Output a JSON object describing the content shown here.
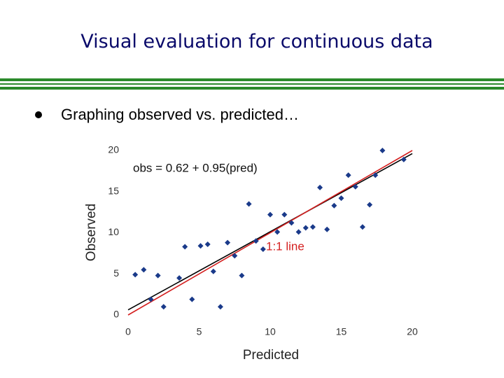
{
  "slide": {
    "title": "Visual evaluation for continuous data",
    "bullet": "Graphing observed vs. predicted…"
  },
  "chart_data": {
    "type": "scatter",
    "x_label": "Predicted",
    "y_label": "Observed",
    "x": [
      0.5,
      1.1,
      1.6,
      2.1,
      2.5,
      3.6,
      4.0,
      4.5,
      5.1,
      5.6,
      6.0,
      6.5,
      7.0,
      7.5,
      8.0,
      8.5,
      9.0,
      9.5,
      10.0,
      10.5,
      11.0,
      11.5,
      12.0,
      12.5,
      13.0,
      13.5,
      14.0,
      14.5,
      15.0,
      15.5,
      16.0,
      16.5,
      17.0,
      17.4,
      17.9,
      19.4
    ],
    "y": [
      4.9,
      5.5,
      1.9,
      4.8,
      1.0,
      4.5,
      8.3,
      1.9,
      8.4,
      8.6,
      5.3,
      1.0,
      8.8,
      7.2,
      4.8,
      13.5,
      9.0,
      8.0,
      12.2,
      10.1,
      12.2,
      11.2,
      10.1,
      10.6,
      10.7,
      15.5,
      10.4,
      13.3,
      14.2,
      17.0,
      15.6,
      10.7,
      13.4,
      17.0,
      20.0,
      18.9
    ],
    "color": "#1a3a8a",
    "lines": [
      {
        "x": [
          0,
          20
        ],
        "y": [
          0.62,
          19.62
        ],
        "color": "#000000"
      },
      {
        "x": [
          0,
          20
        ],
        "y": [
          0,
          20
        ],
        "color": "#d42020"
      }
    ],
    "annotations": [
      "obs = 0.62 + 0.95(pred)",
      "1:1 line"
    ],
    "xlim": [
      0,
      20
    ],
    "xticks": [
      0,
      5,
      10,
      15,
      20
    ],
    "ylim": [
      0,
      20
    ],
    "yticks": [
      0,
      5,
      10,
      15,
      20
    ]
  }
}
